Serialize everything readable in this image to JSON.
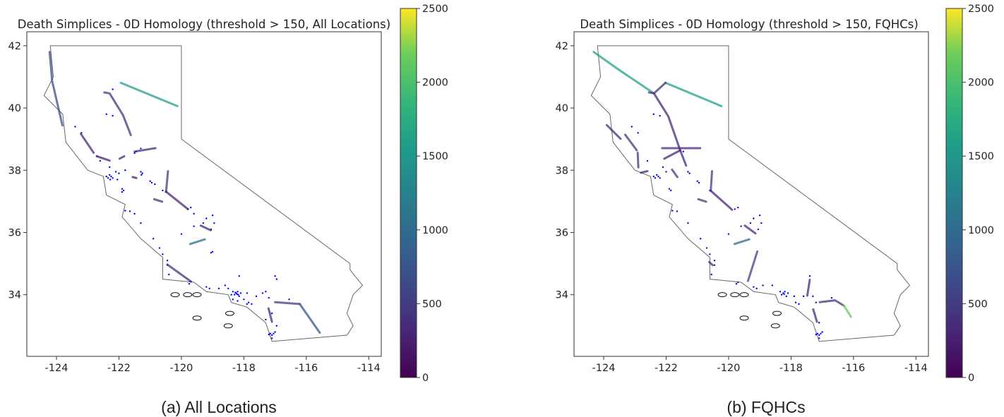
{
  "chart_data": [
    {
      "type": "map-line",
      "title": "Death Simplices - 0D Homology (threshold > 150, All Locations)",
      "caption": "(a) All Locations",
      "xlim": [
        -124.95,
        -113.6
      ],
      "ylim": [
        32.02,
        42.45
      ],
      "xticks": [
        -124,
        -122,
        -120,
        -118,
        -116,
        -114
      ],
      "yticks": [
        34,
        36,
        38,
        40,
        42
      ],
      "colorbar": {
        "min": 0,
        "max": 2500,
        "ticks": [
          0,
          500,
          1000,
          1500,
          2000,
          2500
        ],
        "cmap": "viridis"
      },
      "segments": [
        {
          "value": 600,
          "path": [
            [
              -124.22,
              41.8
            ],
            [
              -124.14,
              40.87
            ],
            [
              -123.81,
              39.44
            ]
          ]
        },
        {
          "value": 1400,
          "path": [
            [
              -121.94,
              40.81
            ],
            [
              -120.13,
              40.06
            ]
          ]
        },
        {
          "value": 400,
          "path": [
            [
              -122.47,
              40.5
            ],
            [
              -122.3,
              40.47
            ],
            [
              -121.87,
              39.77
            ],
            [
              -121.62,
              39.13
            ]
          ]
        },
        {
          "value": 300,
          "path": [
            [
              -123.22,
              39.17
            ],
            [
              -122.81,
              38.56
            ]
          ]
        },
        {
          "value": 250,
          "path": [
            [
              -122.71,
              38.45
            ],
            [
              -122.3,
              38.31
            ]
          ]
        },
        {
          "value": 300,
          "path": [
            [
              -121.98,
              38.37
            ],
            [
              -121.83,
              38.45
            ]
          ]
        },
        {
          "value": 300,
          "path": [
            [
              -121.5,
              38.6
            ],
            [
              -120.83,
              38.71
            ]
          ]
        },
        {
          "value": 200,
          "path": [
            [
              -121.56,
              37.78
            ],
            [
              -121.44,
              37.75
            ]
          ]
        },
        {
          "value": 450,
          "path": [
            [
              -120.43,
              37.97
            ],
            [
              -120.49,
              37.31
            ]
          ]
        },
        {
          "value": 250,
          "path": [
            [
              -120.49,
              37.31
            ],
            [
              -119.79,
              36.75
            ]
          ]
        },
        {
          "value": 400,
          "path": [
            [
              -120.87,
              37.07
            ],
            [
              -120.62,
              36.99
            ]
          ]
        },
        {
          "value": 300,
          "path": [
            [
              -119.38,
              36.22
            ],
            [
              -119.06,
              36.07
            ]
          ]
        },
        {
          "value": 900,
          "path": [
            [
              -119.72,
              35.63
            ],
            [
              -119.25,
              35.78
            ]
          ]
        },
        {
          "value": 350,
          "path": [
            [
              -120.45,
              34.97
            ],
            [
              -119.69,
              34.42
            ]
          ]
        },
        {
          "value": 450,
          "path": [
            [
              -117.0,
              33.76
            ],
            [
              -116.21,
              33.7
            ]
          ]
        },
        {
          "value": 650,
          "path": [
            [
              -116.21,
              33.7
            ],
            [
              -115.57,
              32.78
            ]
          ]
        },
        {
          "value": 300,
          "path": [
            [
              -117.21,
              33.56
            ],
            [
              -117.1,
              33.13
            ]
          ]
        }
      ],
      "points": [
        [
          -122.4,
          37.8
        ],
        [
          -122.3,
          37.85
        ],
        [
          -122.25,
          37.8
        ],
        [
          -122.2,
          37.75
        ],
        [
          -122.0,
          37.9
        ],
        [
          -122.05,
          37.7
        ],
        [
          -121.9,
          37.4
        ],
        [
          -121.85,
          37.35
        ],
        [
          -121.9,
          37.3
        ],
        [
          -122.1,
          37.95
        ],
        [
          -121.8,
          38.0
        ],
        [
          -122.3,
          38.1
        ],
        [
          -122.6,
          38.3
        ],
        [
          -122.7,
          38.45
        ],
        [
          -122.35,
          37.75
        ],
        [
          -122.28,
          37.7
        ],
        [
          -121.45,
          38.6
        ],
        [
          -121.5,
          38.55
        ],
        [
          -121.3,
          38.7
        ],
        [
          -121.3,
          37.95
        ],
        [
          -121.25,
          37.9
        ],
        [
          -121.28,
          37.85
        ],
        [
          -121.0,
          37.65
        ],
        [
          -120.95,
          37.6
        ],
        [
          -120.85,
          37.55
        ],
        [
          -120.6,
          37.35
        ],
        [
          -120.5,
          37.3
        ],
        [
          -122.4,
          39.8
        ],
        [
          -122.2,
          39.75
        ],
        [
          -123.2,
          39.2
        ],
        [
          -123.4,
          39.4
        ],
        [
          -122.2,
          40.6
        ],
        [
          -119.8,
          36.75
        ],
        [
          -119.7,
          36.8
        ],
        [
          -119.6,
          36.6
        ],
        [
          -119.3,
          36.3
        ],
        [
          -119.2,
          36.45
        ],
        [
          -119.0,
          36.55
        ],
        [
          -119.05,
          36.1
        ],
        [
          -119.6,
          36.2
        ],
        [
          -120.0,
          35.95
        ],
        [
          -118.95,
          36.3
        ],
        [
          -121.8,
          36.7
        ],
        [
          -121.65,
          36.68
        ],
        [
          -121.5,
          36.6
        ],
        [
          -121.3,
          36.3
        ],
        [
          -120.9,
          35.8
        ],
        [
          -120.7,
          35.5
        ],
        [
          -120.6,
          35.3
        ],
        [
          -120.45,
          35.1
        ],
        [
          -120.45,
          34.95
        ],
        [
          -120.4,
          34.65
        ],
        [
          -119.7,
          34.42
        ],
        [
          -119.75,
          34.35
        ],
        [
          -119.0,
          35.38
        ],
        [
          -119.05,
          35.35
        ],
        [
          -118.25,
          34.05
        ],
        [
          -118.3,
          34.0
        ],
        [
          -118.2,
          34.1
        ],
        [
          -118.15,
          33.95
        ],
        [
          -118.35,
          34.1
        ],
        [
          -118.4,
          34.0
        ],
        [
          -118.1,
          34.05
        ],
        [
          -117.9,
          34.05
        ],
        [
          -118.0,
          33.85
        ],
        [
          -117.85,
          33.75
        ],
        [
          -117.9,
          33.7
        ],
        [
          -117.75,
          33.7
        ],
        [
          -117.6,
          33.95
        ],
        [
          -117.4,
          34.05
        ],
        [
          -117.3,
          34.1
        ],
        [
          -117.2,
          33.9
        ],
        [
          -118.5,
          34.2
        ],
        [
          -118.8,
          34.2
        ],
        [
          -119.1,
          34.2
        ],
        [
          -119.2,
          34.25
        ],
        [
          -118.6,
          34.3
        ],
        [
          -118.15,
          34.6
        ],
        [
          -118.35,
          33.85
        ],
        [
          -118.2,
          33.8
        ],
        [
          -117.0,
          34.6
        ],
        [
          -116.95,
          34.5
        ],
        [
          -118.22,
          34.02
        ],
        [
          -118.27,
          34.07
        ],
        [
          -118.18,
          34.0
        ],
        [
          -117.15,
          32.75
        ],
        [
          -117.1,
          32.7
        ],
        [
          -117.05,
          32.75
        ],
        [
          -117.2,
          32.72
        ],
        [
          -117.1,
          32.6
        ],
        [
          -117.0,
          32.8
        ],
        [
          -116.95,
          33.0
        ],
        [
          -117.3,
          33.2
        ],
        [
          -117.1,
          33.4
        ],
        [
          -116.55,
          33.85
        ]
      ]
    },
    {
      "type": "map-line",
      "title": "Death Simplices - 0D Homology (threshold > 150, FQHCs)",
      "caption": "(b) FQHCs",
      "xlim": [
        -124.95,
        -113.6
      ],
      "ylim": [
        32.02,
        42.45
      ],
      "xticks": [
        -124,
        -122,
        -120,
        -118,
        -116,
        -114
      ],
      "yticks": [
        34,
        36,
        38,
        40,
        42
      ],
      "colorbar": {
        "min": 0,
        "max": 2500,
        "ticks": [
          0,
          500,
          1000,
          1500,
          2000,
          2500
        ],
        "cmap": "viridis"
      },
      "segments": [
        {
          "value": 1400,
          "path": [
            [
              -124.32,
              41.8
            ],
            [
              -123.5,
              41.22
            ],
            [
              -122.42,
              40.49
            ]
          ]
        },
        {
          "value": 1400,
          "path": [
            [
              -122.02,
              40.81
            ],
            [
              -120.23,
              40.06
            ]
          ]
        },
        {
          "value": 350,
          "path": [
            [
              -122.55,
              40.5
            ],
            [
              -122.39,
              40.47
            ],
            [
              -122.02,
              40.81
            ]
          ]
        },
        {
          "value": 300,
          "path": [
            [
              -122.39,
              40.47
            ],
            [
              -121.93,
              39.73
            ],
            [
              -121.55,
              38.64
            ],
            [
              -121.36,
              38.15
            ]
          ]
        },
        {
          "value": 300,
          "path": [
            [
              -122.13,
              38.71
            ],
            [
              -120.91,
              38.71
            ]
          ]
        },
        {
          "value": 250,
          "path": [
            [
              -122.06,
              38.37
            ],
            [
              -121.55,
              38.64
            ]
          ]
        },
        {
          "value": 300,
          "path": [
            [
              -123.9,
              39.45
            ],
            [
              -123.46,
              39.01
            ]
          ]
        },
        {
          "value": 350,
          "path": [
            [
              -123.31,
              39.14
            ],
            [
              -122.94,
              38.64
            ]
          ]
        },
        {
          "value": 350,
          "path": [
            [
              -122.91,
              38.56
            ],
            [
              -122.89,
              38.09
            ]
          ]
        },
        {
          "value": 250,
          "path": [
            [
              -122.81,
              37.92
            ],
            [
              -122.6,
              37.97
            ]
          ]
        },
        {
          "value": 400,
          "path": [
            [
              -121.81,
              38.02
            ],
            [
              -121.64,
              37.78
            ]
          ]
        },
        {
          "value": 450,
          "path": [
            [
              -120.53,
              37.97
            ],
            [
              -120.57,
              37.34
            ]
          ]
        },
        {
          "value": 250,
          "path": [
            [
              -120.57,
              37.34
            ],
            [
              -119.89,
              36.73
            ]
          ]
        },
        {
          "value": 450,
          "path": [
            [
              -120.97,
              37.07
            ],
            [
              -120.72,
              36.99
            ]
          ]
        },
        {
          "value": 300,
          "path": [
            [
              -119.48,
              36.22
            ],
            [
              -119.14,
              35.97
            ]
          ]
        },
        {
          "value": 900,
          "path": [
            [
              -119.81,
              35.63
            ],
            [
              -119.34,
              35.78
            ]
          ]
        },
        {
          "value": 500,
          "path": [
            [
              -119.08,
              35.39
            ],
            [
              -119.38,
              34.44
            ]
          ]
        },
        {
          "value": 300,
          "path": [
            [
              -120.62,
              35.05
            ],
            [
              -120.51,
              34.95
            ]
          ]
        },
        {
          "value": 300,
          "path": [
            [
              -117.4,
              34.48
            ],
            [
              -117.48,
              33.97
            ]
          ]
        },
        {
          "value": 350,
          "path": [
            [
              -117.08,
              33.76
            ],
            [
              -116.59,
              33.82
            ],
            [
              -116.31,
              33.65
            ]
          ]
        },
        {
          "value": 1900,
          "path": [
            [
              -116.31,
              33.65
            ],
            [
              -116.08,
              33.29
            ]
          ]
        },
        {
          "value": 300,
          "path": [
            [
              -117.29,
              33.53
            ],
            [
              -117.17,
              33.13
            ]
          ]
        }
      ],
      "points": [
        [
          -122.4,
          37.8
        ],
        [
          -122.3,
          37.85
        ],
        [
          -122.25,
          37.8
        ],
        [
          -122.2,
          37.75
        ],
        [
          -122.0,
          37.95
        ],
        [
          -121.9,
          37.4
        ],
        [
          -121.85,
          37.35
        ],
        [
          -122.1,
          38.1
        ],
        [
          -122.6,
          38.3
        ],
        [
          -122.35,
          37.75
        ],
        [
          -121.45,
          38.6
        ],
        [
          -121.3,
          37.95
        ],
        [
          -121.25,
          37.9
        ],
        [
          -121.0,
          37.65
        ],
        [
          -120.95,
          37.6
        ],
        [
          -120.6,
          37.35
        ],
        [
          -122.4,
          39.8
        ],
        [
          -122.2,
          39.75
        ],
        [
          -123.1,
          39.4
        ],
        [
          -122.9,
          39.2
        ],
        [
          -119.8,
          36.75
        ],
        [
          -119.7,
          36.8
        ],
        [
          -119.3,
          36.3
        ],
        [
          -119.2,
          36.45
        ],
        [
          -119.0,
          36.55
        ],
        [
          -119.05,
          36.1
        ],
        [
          -119.6,
          36.2
        ],
        [
          -120.0,
          35.95
        ],
        [
          -118.95,
          36.3
        ],
        [
          -121.8,
          36.7
        ],
        [
          -121.65,
          36.68
        ],
        [
          -121.3,
          36.3
        ],
        [
          -120.9,
          35.8
        ],
        [
          -120.7,
          35.5
        ],
        [
          -120.6,
          35.3
        ],
        [
          -120.45,
          35.1
        ],
        [
          -120.45,
          34.95
        ],
        [
          -120.55,
          34.65
        ],
        [
          -119.7,
          34.4
        ],
        [
          -119.75,
          34.35
        ],
        [
          -119.2,
          34.25
        ],
        [
          -119.1,
          34.2
        ],
        [
          -118.9,
          34.3
        ],
        [
          -118.6,
          34.3
        ],
        [
          -118.25,
          34.05
        ],
        [
          -118.3,
          34.0
        ],
        [
          -118.2,
          34.1
        ],
        [
          -118.15,
          33.95
        ],
        [
          -118.35,
          34.1
        ],
        [
          -118.1,
          34.05
        ],
        [
          -117.9,
          33.95
        ],
        [
          -117.85,
          33.75
        ],
        [
          -117.75,
          33.7
        ],
        [
          -117.6,
          33.95
        ],
        [
          -117.3,
          33.95
        ],
        [
          -117.4,
          34.6
        ],
        [
          -118.22,
          34.02
        ],
        [
          -117.15,
          32.75
        ],
        [
          -117.1,
          32.7
        ],
        [
          -117.05,
          32.75
        ],
        [
          -117.2,
          32.72
        ],
        [
          -117.1,
          32.6
        ],
        [
          -117.0,
          32.8
        ],
        [
          -117.1,
          33.1
        ],
        [
          -117.2,
          33.75
        ],
        [
          -116.7,
          33.9
        ]
      ]
    }
  ]
}
